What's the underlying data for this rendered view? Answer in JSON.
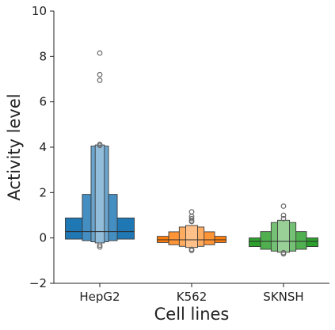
{
  "chart_data": {
    "type": "boxen",
    "title": "",
    "xlabel": "Cell lines",
    "ylabel": "Activity level",
    "ylim": [
      -2,
      10
    ],
    "yticks": [
      -2,
      0,
      2,
      4,
      6,
      8,
      10
    ],
    "ytick_labels": [
      "−2",
      "0",
      "2",
      "4",
      "6",
      "8",
      "10"
    ],
    "grid": false,
    "categories": [
      "HepG2",
      "K562",
      "SKNSH"
    ],
    "series": [
      {
        "category": "HepG2",
        "color": "#1f77b4",
        "median": 0.28,
        "levels": [
          {
            "low": -0.05,
            "high": 0.88,
            "width": 0.75
          },
          {
            "low": -0.12,
            "high": 1.92,
            "width": 0.38
          },
          {
            "low": -0.17,
            "high": 4.05,
            "width": 0.19
          },
          {
            "low": -0.22,
            "high": 4.1,
            "width": 0.1
          }
        ],
        "outliers": [
          8.15,
          7.2,
          6.95,
          4.12,
          4.08,
          -0.32,
          -0.4
        ]
      },
      {
        "category": "K562",
        "color": "#ff7f0e",
        "median": -0.08,
        "levels": [
          {
            "low": -0.2,
            "high": 0.07,
            "width": 0.75
          },
          {
            "low": -0.3,
            "high": 0.27,
            "width": 0.5
          },
          {
            "low": -0.37,
            "high": 0.48,
            "width": 0.27
          },
          {
            "low": -0.42,
            "high": 0.55,
            "width": 0.13
          }
        ],
        "outliers": [
          1.15,
          0.95,
          0.85,
          0.75,
          0.72,
          -0.5,
          -0.55
        ]
      },
      {
        "category": "SKNSH",
        "color": "#2ca02c",
        "median": -0.15,
        "levels": [
          {
            "low": -0.38,
            "high": 0.0,
            "width": 0.75
          },
          {
            "low": -0.5,
            "high": 0.28,
            "width": 0.5
          },
          {
            "low": -0.58,
            "high": 0.68,
            "width": 0.27
          },
          {
            "low": -0.63,
            "high": 0.78,
            "width": 0.13
          }
        ],
        "outliers": [
          1.4,
          1.0,
          0.85,
          -0.65,
          -0.7
        ]
      }
    ]
  }
}
